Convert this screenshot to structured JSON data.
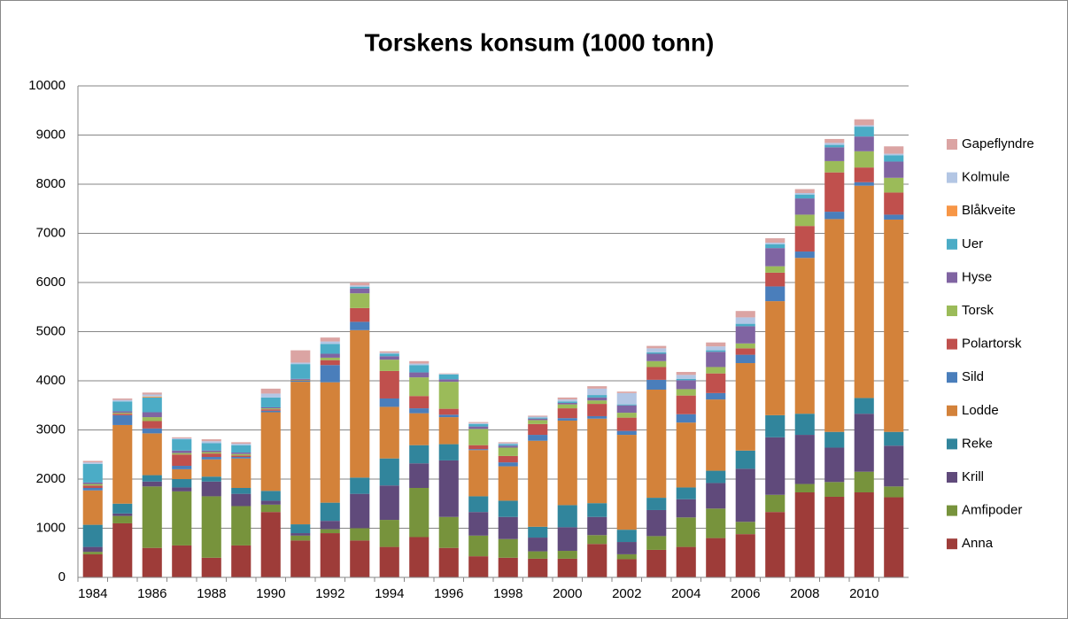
{
  "chart_data": {
    "type": "bar",
    "stacked": true,
    "title": "Torskens konsum (1000 tonn)",
    "categories": [
      "1984",
      null,
      "1986",
      null,
      "1988",
      null,
      "1990",
      null,
      "1992",
      null,
      "1994",
      null,
      "1996",
      null,
      "1998",
      null,
      "2000",
      null,
      "2002",
      null,
      "2004",
      null,
      "2006",
      null,
      "2008",
      null,
      "2010",
      null
    ],
    "series": [
      {
        "name": "Anna",
        "color": "#9e3c39",
        "values": [
          470,
          1100,
          600,
          650,
          400,
          650,
          1330,
          750,
          900,
          750,
          620,
          820,
          600,
          430,
          400,
          380,
          380,
          680,
          370,
          560,
          620,
          800,
          880,
          1330,
          1730,
          1640,
          1730,
          1630
        ]
      },
      {
        "name": "Amfipoder",
        "color": "#77933c",
        "values": [
          50,
          150,
          1250,
          1100,
          1250,
          800,
          150,
          100,
          80,
          250,
          550,
          1000,
          630,
          420,
          380,
          150,
          160,
          180,
          100,
          280,
          600,
          600,
          250,
          350,
          170,
          300,
          420,
          220
        ]
      },
      {
        "name": "Krill",
        "color": "#604a7b",
        "values": [
          100,
          50,
          100,
          80,
          300,
          250,
          80,
          50,
          170,
          700,
          700,
          500,
          1150,
          480,
          450,
          280,
          480,
          370,
          250,
          530,
          370,
          520,
          1080,
          1170,
          1000,
          700,
          1180,
          830
        ]
      },
      {
        "name": "Reke",
        "color": "#31859c",
        "values": [
          450,
          200,
          130,
          170,
          100,
          120,
          200,
          180,
          370,
          330,
          550,
          370,
          330,
          320,
          330,
          220,
          450,
          280,
          250,
          250,
          240,
          250,
          370,
          450,
          430,
          320,
          320,
          280
        ]
      },
      {
        "name": "Lodde",
        "color": "#d3823a",
        "values": [
          700,
          1600,
          850,
          200,
          350,
          600,
          1600,
          2900,
          2450,
          3000,
          1050,
          650,
          550,
          940,
          700,
          1750,
          1720,
          1720,
          1930,
          2200,
          1320,
          1450,
          1780,
          2320,
          3170,
          4330,
          4320,
          4320
        ]
      },
      {
        "name": "Sild",
        "color": "#4a7ebb",
        "values": [
          50,
          200,
          100,
          70,
          50,
          30,
          30,
          20,
          350,
          170,
          170,
          100,
          50,
          20,
          80,
          120,
          50,
          50,
          80,
          200,
          170,
          130,
          170,
          300,
          130,
          150,
          70,
          100
        ]
      },
      {
        "name": "Polartorsk",
        "color": "#c0504d",
        "values": [
          50,
          30,
          150,
          230,
          70,
          30,
          30,
          10,
          100,
          280,
          560,
          250,
          120,
          80,
          130,
          220,
          200,
          250,
          270,
          260,
          380,
          400,
          130,
          280,
          520,
          800,
          300,
          450
        ]
      },
      {
        "name": "Torsk",
        "color": "#9bbb59",
        "values": [
          30,
          20,
          80,
          30,
          30,
          30,
          20,
          10,
          50,
          300,
          230,
          380,
          550,
          330,
          170,
          80,
          80,
          70,
          100,
          120,
          130,
          130,
          100,
          130,
          230,
          230,
          330,
          300
        ]
      },
      {
        "name": "Hyse",
        "color": "#8064a2",
        "values": [
          30,
          30,
          100,
          50,
          30,
          30,
          20,
          20,
          80,
          100,
          70,
          100,
          50,
          50,
          40,
          30,
          30,
          60,
          150,
          150,
          180,
          310,
          350,
          370,
          330,
          280,
          300,
          330
        ]
      },
      {
        "name": "Uer",
        "color": "#4bacc6",
        "values": [
          380,
          200,
          300,
          230,
          150,
          150,
          200,
          300,
          200,
          30,
          50,
          150,
          100,
          50,
          30,
          20,
          30,
          50,
          20,
          30,
          30,
          30,
          50,
          80,
          80,
          50,
          200,
          130
        ]
      },
      {
        "name": "Blåkveite",
        "color": "#f79646",
        "values": [
          0,
          0,
          20,
          0,
          0,
          0,
          0,
          0,
          0,
          0,
          0,
          0,
          0,
          0,
          0,
          0,
          0,
          0,
          0,
          0,
          0,
          0,
          0,
          0,
          0,
          0,
          0,
          0
        ]
      },
      {
        "name": "Kolmule",
        "color": "#b3c6e4",
        "values": [
          30,
          30,
          40,
          20,
          40,
          30,
          80,
          30,
          50,
          30,
          20,
          30,
          10,
          20,
          20,
          20,
          40,
          130,
          230,
          80,
          80,
          80,
          130,
          30,
          30,
          40,
          30,
          30
        ]
      },
      {
        "name": "Gapeflyndre",
        "color": "#dba4a3",
        "values": [
          30,
          30,
          40,
          20,
          40,
          30,
          100,
          250,
          80,
          60,
          30,
          50,
          10,
          20,
          20,
          20,
          40,
          50,
          30,
          50,
          60,
          80,
          130,
          90,
          80,
          80,
          120,
          150
        ]
      }
    ],
    "ylim": [
      0,
      10000
    ],
    "yticks": [
      0,
      1000,
      2000,
      3000,
      4000,
      5000,
      6000,
      7000,
      8000,
      9000,
      10000
    ],
    "grid": true,
    "legend": "right"
  }
}
